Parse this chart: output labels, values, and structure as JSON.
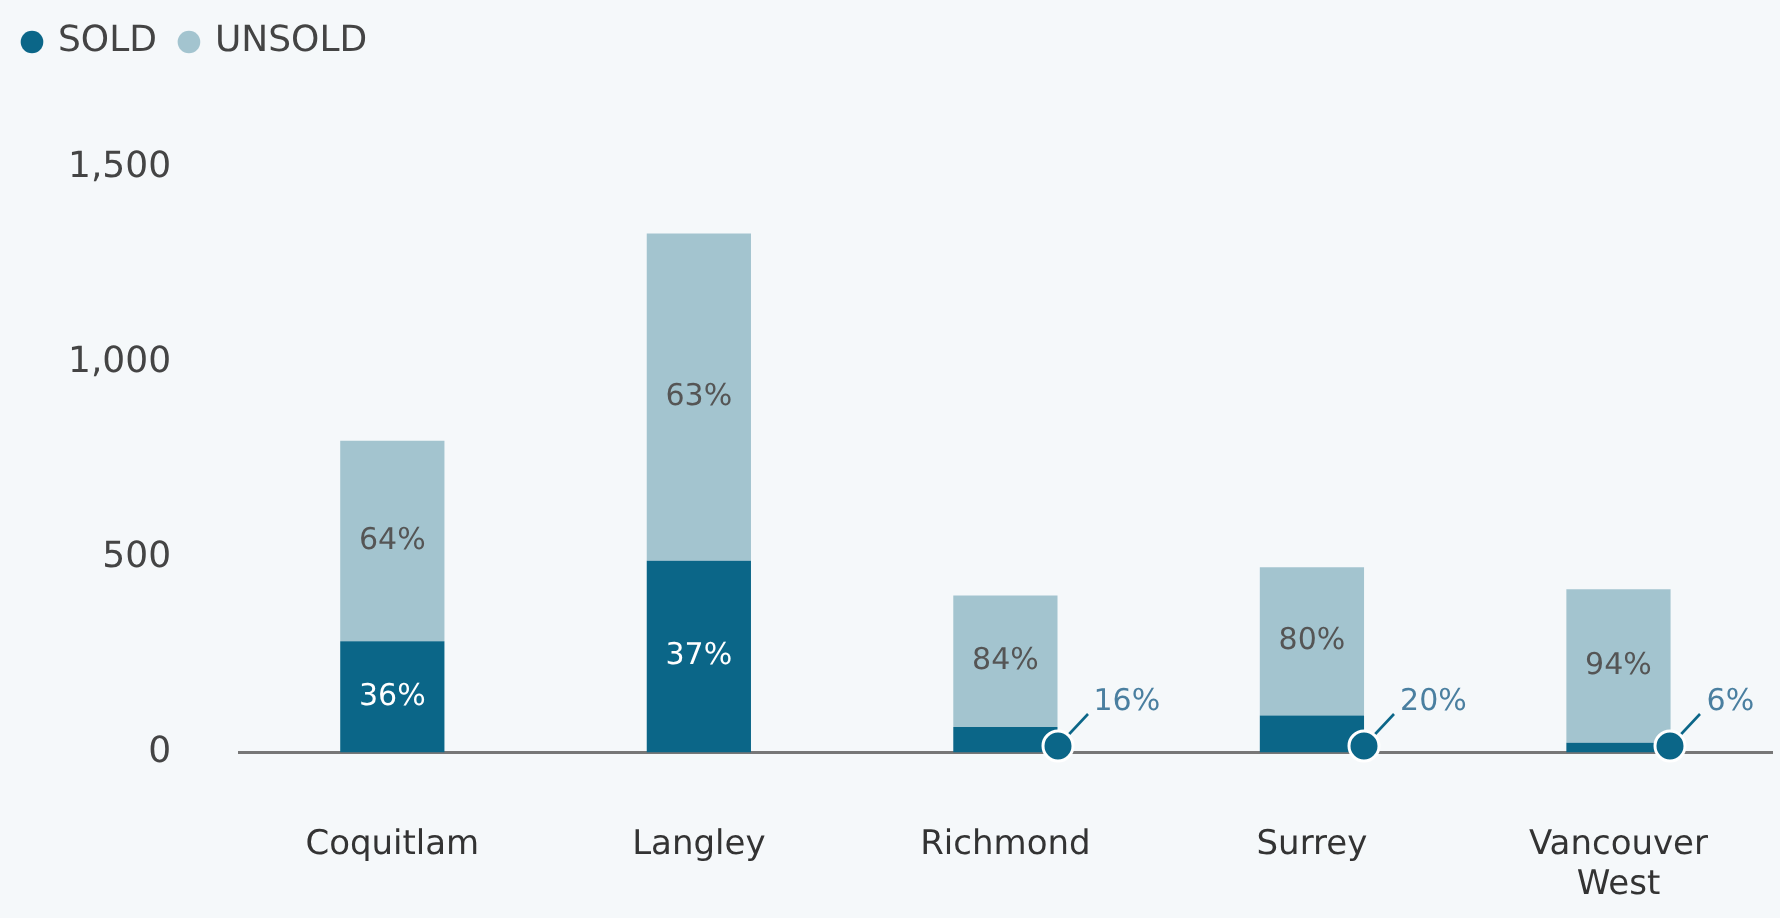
{
  "chart_data": {
    "type": "bar",
    "stacked": true,
    "categories": [
      "Coquitlam",
      "Langley",
      "Richmond",
      "Surrey",
      "Vancouver West"
    ],
    "series": [
      {
        "name": "SOLD",
        "color": "#0b6688",
        "values": [
          285,
          492,
          65,
          95,
          25
        ]
      },
      {
        "name": "UNSOLD",
        "color": "#a3c4cf",
        "values": [
          515,
          840,
          338,
          380,
          394
        ]
      }
    ],
    "annotations": [
      "36%",
      "64%",
      "37%",
      "63%",
      "16%",
      "84%",
      "20%",
      "80%",
      "6%",
      "94%"
    ],
    "ylim": [
      0,
      1500
    ],
    "yticks": [
      0,
      {
        "value": 500,
        "label": "500"
      },
      {
        "value": 1000,
        "label": "1,000"
      },
      {
        "value": 1500,
        "label": "1,500"
      }
    ],
    "grid": false,
    "legend": "top left"
  }
}
